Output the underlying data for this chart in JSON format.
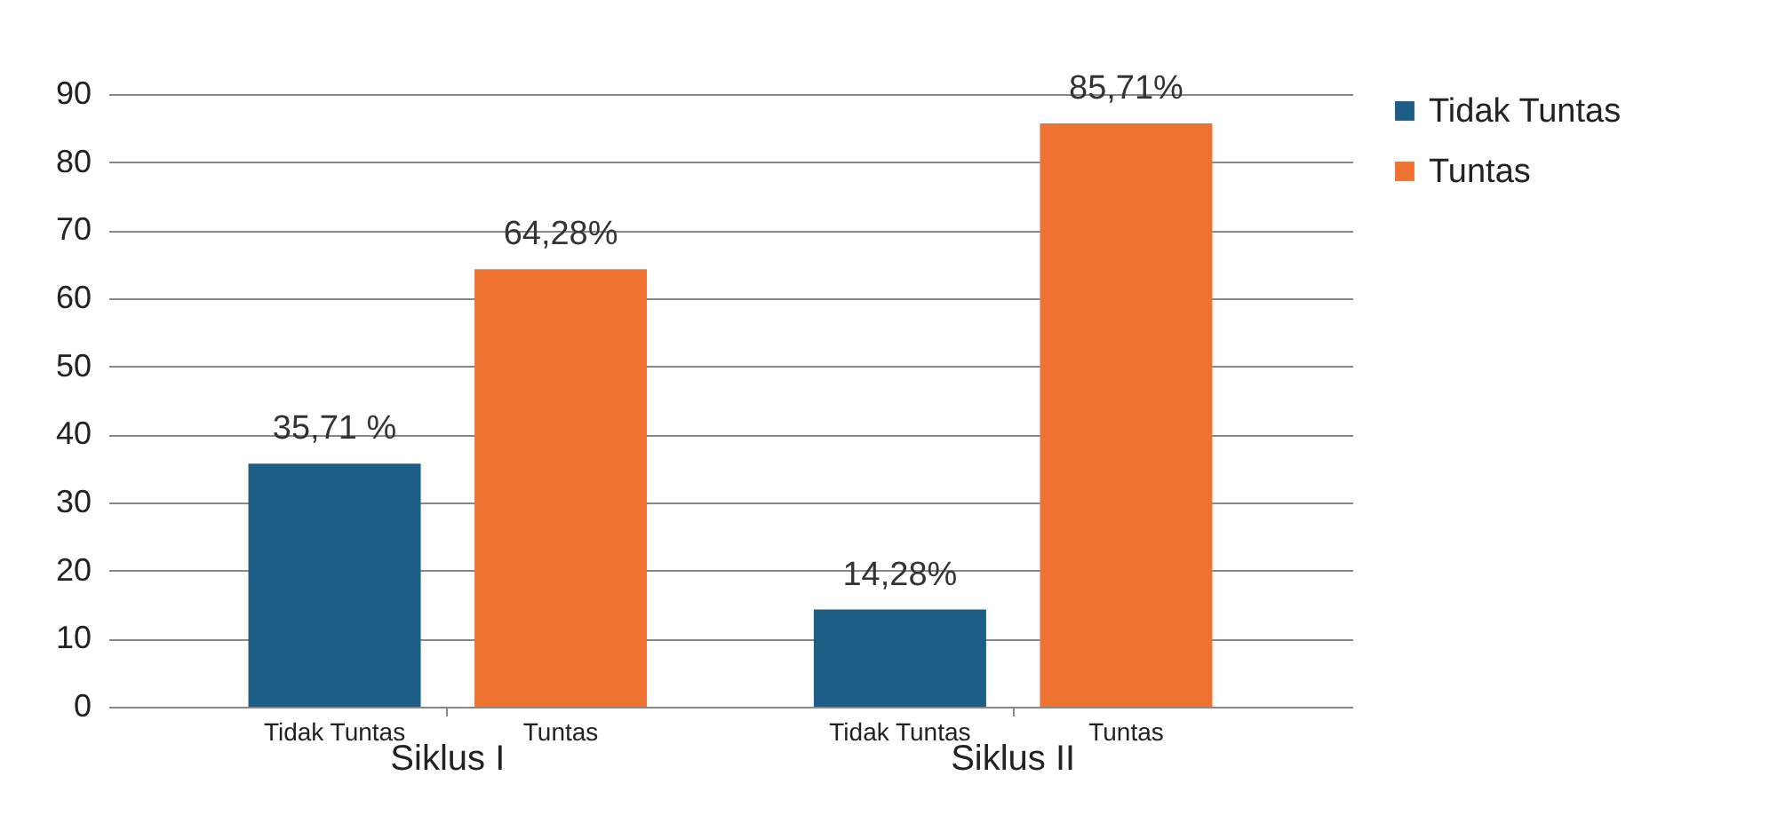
{
  "chart_data": {
    "type": "bar",
    "categories": [
      "Siklus I",
      "Siklus II"
    ],
    "series": [
      {
        "name": "Tidak Tuntas",
        "color": "#1d5e86",
        "values": [
          35.71,
          14.28
        ],
        "value_labels": [
          "35,71 %",
          "14,28%"
        ]
      },
      {
        "name": "Tuntas",
        "color": "#ee7330",
        "values": [
          64.28,
          85.71
        ],
        "value_labels": [
          "64,28%",
          "85,71%"
        ]
      }
    ],
    "ylim": [
      0,
      90
    ],
    "yticks": [
      0,
      10,
      20,
      30,
      40,
      50,
      60,
      70,
      80,
      90
    ],
    "grid": "y",
    "legend": "right"
  }
}
